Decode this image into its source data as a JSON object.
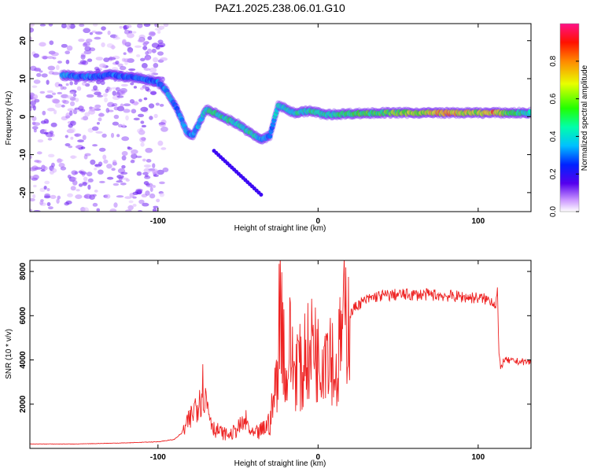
{
  "title": "PAZ1.2025.238.06.01.G10",
  "chart_data": [
    {
      "type": "heatmap",
      "xlabel": "Height of straight line (km)",
      "ylabel": "Frequency (Hz)",
      "xlim": [
        -180,
        133
      ],
      "ylim": [
        -25,
        24.5
      ],
      "xticks": [
        -100,
        0,
        100
      ],
      "yticks": [
        -20,
        -10,
        0,
        10,
        20
      ],
      "colorbar": {
        "label": "Normalized spectral amplitude",
        "range": [
          0,
          1
        ],
        "ticks": [
          "0.0",
          "0.2",
          "0.4",
          "0.6",
          "0.8"
        ]
      },
      "ridge": [
        {
          "x": -160,
          "f": 11,
          "a": 0.35
        },
        {
          "x": -150,
          "f": 10.5,
          "a": 0.3
        },
        {
          "x": -140,
          "f": 10.5,
          "a": 0.3
        },
        {
          "x": -130,
          "f": 11,
          "a": 0.3
        },
        {
          "x": -120,
          "f": 10.5,
          "a": 0.3
        },
        {
          "x": -110,
          "f": 10,
          "a": 0.3
        },
        {
          "x": -100,
          "f": 9,
          "a": 0.3
        },
        {
          "x": -95,
          "f": 7,
          "a": 0.35
        },
        {
          "x": -88,
          "f": 2,
          "a": 0.3
        },
        {
          "x": -82,
          "f": -4,
          "a": 0.35
        },
        {
          "x": -78,
          "f": -5,
          "a": 0.3
        },
        {
          "x": -70,
          "f": 2,
          "a": 0.45
        },
        {
          "x": -60,
          "f": 0,
          "a": 0.45
        },
        {
          "x": -50,
          "f": -2,
          "a": 0.45
        },
        {
          "x": -40,
          "f": -5,
          "a": 0.45
        },
        {
          "x": -35,
          "f": -6,
          "a": 0.35
        },
        {
          "x": -30,
          "f": -5,
          "a": 0.3
        },
        {
          "x": -25,
          "f": 3,
          "a": 0.4
        },
        {
          "x": -15,
          "f": 1,
          "a": 0.45
        },
        {
          "x": -5,
          "f": 1.5,
          "a": 0.45
        },
        {
          "x": 5,
          "f": 0.5,
          "a": 0.45
        },
        {
          "x": 20,
          "f": 0.8,
          "a": 0.5
        },
        {
          "x": 40,
          "f": 1,
          "a": 0.55
        },
        {
          "x": 60,
          "f": 1,
          "a": 0.6
        },
        {
          "x": 80,
          "f": 1,
          "a": 0.75
        },
        {
          "x": 100,
          "f": 1,
          "a": 0.6
        },
        {
          "x": 110,
          "f": 1,
          "a": 0.75
        },
        {
          "x": 120,
          "f": 1,
          "a": 0.5
        },
        {
          "x": 133,
          "f": 1,
          "a": 0.45
        }
      ]
    },
    {
      "type": "line",
      "xlabel": "Height of straight line (km)",
      "ylabel": "SNR (10 * v/v)",
      "xlim": [
        -180,
        133
      ],
      "ylim": [
        0,
        8500
      ],
      "xticks": [
        -100,
        0,
        100
      ],
      "yticks": [
        2000,
        4000,
        6000,
        8000
      ],
      "color": "#ee2222",
      "series": [
        {
          "name": "SNR",
          "x": [
            -180,
            -150,
            -120,
            -100,
            -90,
            -85,
            -80,
            -75,
            -72,
            -70,
            -67,
            -65,
            -60,
            -55,
            -50,
            -45,
            -42,
            -40,
            -35,
            -30,
            -27,
            -25,
            -24,
            -22,
            -20,
            -18,
            -15,
            -12,
            -10,
            -8,
            -5,
            -3,
            0,
            3,
            5,
            8,
            10,
            12,
            13,
            15,
            18,
            20,
            22,
            25,
            30,
            35,
            40,
            50,
            60,
            70,
            80,
            90,
            100,
            108,
            111,
            112,
            113,
            114,
            116,
            120,
            133
          ],
          "y": [
            200,
            200,
            250,
            300,
            400,
            700,
            1300,
            2200,
            2800,
            2200,
            1400,
            900,
            700,
            600,
            900,
            1200,
            700,
            600,
            800,
            1200,
            2500,
            4000,
            6800,
            5800,
            2500,
            4800,
            3500,
            4200,
            2800,
            4800,
            3800,
            5300,
            4000,
            4500,
            5000,
            4700,
            3500,
            3200,
            4200,
            5400,
            6000,
            6000,
            6300,
            6500,
            6700,
            6850,
            6900,
            6950,
            6950,
            6950,
            6900,
            6850,
            6800,
            6700,
            6500,
            7200,
            4200,
            3600,
            4000,
            3950,
            3900
          ]
        }
      ]
    }
  ]
}
